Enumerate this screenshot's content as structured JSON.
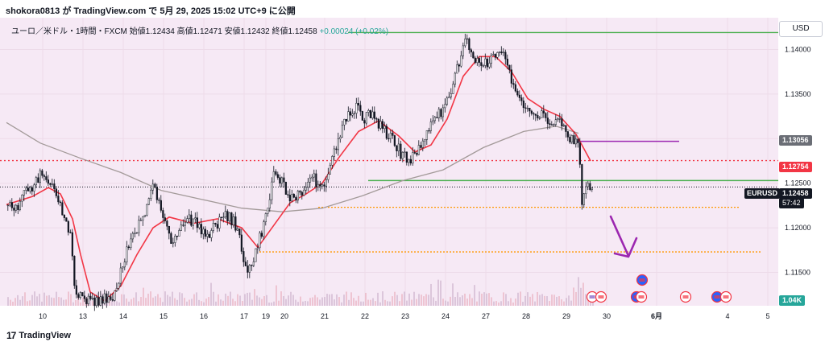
{
  "header": {
    "caption": "shokora0813 が TradingView.com で 5月 29, 2025 15:02 UTC+9 に公開"
  },
  "legend": {
    "symbol": "ユーロ／米ドル・1時間・FXCM",
    "open": "始値1.12434",
    "high": "高値1.12471",
    "low": "安値1.12432",
    "close": "終値1.12458",
    "change": "+0.00024 (+0.02%)"
  },
  "currency_button": "USD",
  "price_tags": {
    "ma_value": "1.13056",
    "red_level": "1.12754",
    "symbol": "EURUSD",
    "last_price": "1.12458",
    "countdown": "57:42",
    "volume": "1.04K"
  },
  "footer": {
    "brand": "TradingView"
  },
  "colors": {
    "background": "#f6e9f5",
    "up": "#131722",
    "down": "#131722",
    "fast_ma": "#f23645",
    "slow_ma": "#a39a99",
    "green_line": "#4caf50",
    "purple_line": "#9c27b0",
    "orange_dotted": "#ff9800",
    "red_dotted": "#f23645",
    "arrow": "#9c27b0"
  },
  "chart_data": {
    "type": "candlestick",
    "symbol": "EURUSD",
    "timeframe": "1時間",
    "y_axis_ticks": [
      1.14,
      1.135,
      1.13,
      1.125,
      1.12,
      1.115
    ],
    "y_axis_labels": [
      "1.14000",
      "1.13500",
      "1.13000",
      "1.12500",
      "1.12000",
      "1.11500"
    ],
    "ylim": [
      1.1118,
      1.1432
    ],
    "x_axis_labels": [
      "10",
      "13",
      "14",
      "15",
      "16",
      "17",
      "19",
      "20",
      "21",
      "22",
      "23",
      "24",
      "27",
      "28",
      "29",
      "30",
      "6月",
      "4",
      "5"
    ],
    "last_close": 1.12458,
    "levels": [
      {
        "name": "top-green",
        "price": 1.1419,
        "style": "solid",
        "color": "green"
      },
      {
        "name": "purple-line",
        "price": 1.1297,
        "style": "solid",
        "color": "purple"
      },
      {
        "name": "red-dotted",
        "price": 1.12754,
        "style": "dotted",
        "color": "red"
      },
      {
        "name": "mid-green",
        "price": 1.1253,
        "style": "solid",
        "color": "green"
      },
      {
        "name": "upper-orange",
        "price": 1.1223,
        "style": "dotted",
        "color": "orange"
      },
      {
        "name": "lower-orange",
        "price": 1.1173,
        "style": "dotted",
        "color": "orange"
      }
    ],
    "close_path": [
      {
        "x": 8,
        "y": 1.1225
      },
      {
        "x": 20,
        "y": 1.1222
      },
      {
        "x": 30,
        "y": 1.1238
      },
      {
        "x": 40,
        "y": 1.1247
      },
      {
        "x": 52,
        "y": 1.1265
      },
      {
        "x": 62,
        "y": 1.1252
      },
      {
        "x": 70,
        "y": 1.1228
      },
      {
        "x": 78,
        "y": 1.1215
      },
      {
        "x": 86,
        "y": 1.1195
      },
      {
        "x": 92,
        "y": 1.1135
      },
      {
        "x": 100,
        "y": 1.1122
      },
      {
        "x": 112,
        "y": 1.1118
      },
      {
        "x": 125,
        "y": 1.1118
      },
      {
        "x": 140,
        "y": 1.1125
      },
      {
        "x": 150,
        "y": 1.1155
      },
      {
        "x": 160,
        "y": 1.1185
      },
      {
        "x": 172,
        "y": 1.1205
      },
      {
        "x": 182,
        "y": 1.1228
      },
      {
        "x": 190,
        "y": 1.1245
      },
      {
        "x": 200,
        "y": 1.1215
      },
      {
        "x": 212,
        "y": 1.1185
      },
      {
        "x": 222,
        "y": 1.1195
      },
      {
        "x": 232,
        "y": 1.1212
      },
      {
        "x": 244,
        "y": 1.1205
      },
      {
        "x": 255,
        "y": 1.119
      },
      {
        "x": 265,
        "y": 1.12
      },
      {
        "x": 278,
        "y": 1.1212
      },
      {
        "x": 290,
        "y": 1.1208
      },
      {
        "x": 298,
        "y": 1.1185
      },
      {
        "x": 305,
        "y": 1.1152
      },
      {
        "x": 314,
        "y": 1.1165
      },
      {
        "x": 322,
        "y": 1.119
      },
      {
        "x": 332,
        "y": 1.1225
      },
      {
        "x": 340,
        "y": 1.1262
      },
      {
        "x": 350,
        "y": 1.1248
      },
      {
        "x": 362,
        "y": 1.1232
      },
      {
        "x": 374,
        "y": 1.1238
      },
      {
        "x": 386,
        "y": 1.1258
      },
      {
        "x": 398,
        "y": 1.1245
      },
      {
        "x": 410,
        "y": 1.127
      },
      {
        "x": 420,
        "y": 1.1302
      },
      {
        "x": 430,
        "y": 1.1325
      },
      {
        "x": 440,
        "y": 1.1335
      },
      {
        "x": 452,
        "y": 1.1322
      },
      {
        "x": 462,
        "y": 1.133
      },
      {
        "x": 472,
        "y": 1.1312
      },
      {
        "x": 484,
        "y": 1.13
      },
      {
        "x": 496,
        "y": 1.1285
      },
      {
        "x": 508,
        "y": 1.1272
      },
      {
        "x": 518,
        "y": 1.129
      },
      {
        "x": 528,
        "y": 1.1308
      },
      {
        "x": 540,
        "y": 1.1322
      },
      {
        "x": 552,
        "y": 1.1338
      },
      {
        "x": 562,
        "y": 1.1365
      },
      {
        "x": 572,
        "y": 1.1392
      },
      {
        "x": 578,
        "y": 1.1412
      },
      {
        "x": 586,
        "y": 1.1392
      },
      {
        "x": 596,
        "y": 1.1382
      },
      {
        "x": 608,
        "y": 1.1386
      },
      {
        "x": 620,
        "y": 1.1398
      },
      {
        "x": 630,
        "y": 1.1378
      },
      {
        "x": 640,
        "y": 1.135
      },
      {
        "x": 650,
        "y": 1.134
      },
      {
        "x": 660,
        "y": 1.1328
      },
      {
        "x": 672,
        "y": 1.133
      },
      {
        "x": 682,
        "y": 1.1318
      },
      {
        "x": 692,
        "y": 1.1325
      },
      {
        "x": 700,
        "y": 1.1308
      },
      {
        "x": 710,
        "y": 1.1297
      },
      {
        "x": 718,
        "y": 1.1292
      },
      {
        "x": 721,
        "y": 1.1222
      },
      {
        "x": 726,
        "y": 1.1248
      },
      {
        "x": 734,
        "y": 1.1246
      }
    ],
    "fast_ma": [
      {
        "x": 8,
        "y": 1.1226
      },
      {
        "x": 40,
        "y": 1.1235
      },
      {
        "x": 60,
        "y": 1.1245
      },
      {
        "x": 75,
        "y": 1.1238
      },
      {
        "x": 90,
        "y": 1.121
      },
      {
        "x": 100,
        "y": 1.117
      },
      {
        "x": 112,
        "y": 1.1128
      },
      {
        "x": 130,
        "y": 1.1118
      },
      {
        "x": 150,
        "y": 1.1135
      },
      {
        "x": 170,
        "y": 1.117
      },
      {
        "x": 190,
        "y": 1.12
      },
      {
        "x": 210,
        "y": 1.1212
      },
      {
        "x": 240,
        "y": 1.1205
      },
      {
        "x": 270,
        "y": 1.121
      },
      {
        "x": 300,
        "y": 1.12
      },
      {
        "x": 320,
        "y": 1.1178
      },
      {
        "x": 340,
        "y": 1.1203
      },
      {
        "x": 360,
        "y": 1.1228
      },
      {
        "x": 380,
        "y": 1.1238
      },
      {
        "x": 400,
        "y": 1.125
      },
      {
        "x": 420,
        "y": 1.1278
      },
      {
        "x": 445,
        "y": 1.1308
      },
      {
        "x": 470,
        "y": 1.132
      },
      {
        "x": 495,
        "y": 1.1303
      },
      {
        "x": 515,
        "y": 1.1285
      },
      {
        "x": 535,
        "y": 1.1293
      },
      {
        "x": 555,
        "y": 1.1322
      },
      {
        "x": 575,
        "y": 1.137
      },
      {
        "x": 595,
        "y": 1.1392
      },
      {
        "x": 615,
        "y": 1.1392
      },
      {
        "x": 635,
        "y": 1.1375
      },
      {
        "x": 655,
        "y": 1.1345
      },
      {
        "x": 675,
        "y": 1.1333
      },
      {
        "x": 695,
        "y": 1.1325
      },
      {
        "x": 715,
        "y": 1.1305
      },
      {
        "x": 733,
        "y": 1.1275
      }
    ],
    "slow_ma": [
      {
        "x": 8,
        "y": 1.1318
      },
      {
        "x": 50,
        "y": 1.1295
      },
      {
        "x": 100,
        "y": 1.1278
      },
      {
        "x": 150,
        "y": 1.1262
      },
      {
        "x": 200,
        "y": 1.1242
      },
      {
        "x": 250,
        "y": 1.1232
      },
      {
        "x": 300,
        "y": 1.1222
      },
      {
        "x": 350,
        "y": 1.1218
      },
      {
        "x": 400,
        "y": 1.1222
      },
      {
        "x": 450,
        "y": 1.1236
      },
      {
        "x": 500,
        "y": 1.1253
      },
      {
        "x": 550,
        "y": 1.1265
      },
      {
        "x": 600,
        "y": 1.129
      },
      {
        "x": 650,
        "y": 1.1308
      },
      {
        "x": 690,
        "y": 1.1314
      },
      {
        "x": 718,
        "y": 1.1306
      }
    ]
  }
}
